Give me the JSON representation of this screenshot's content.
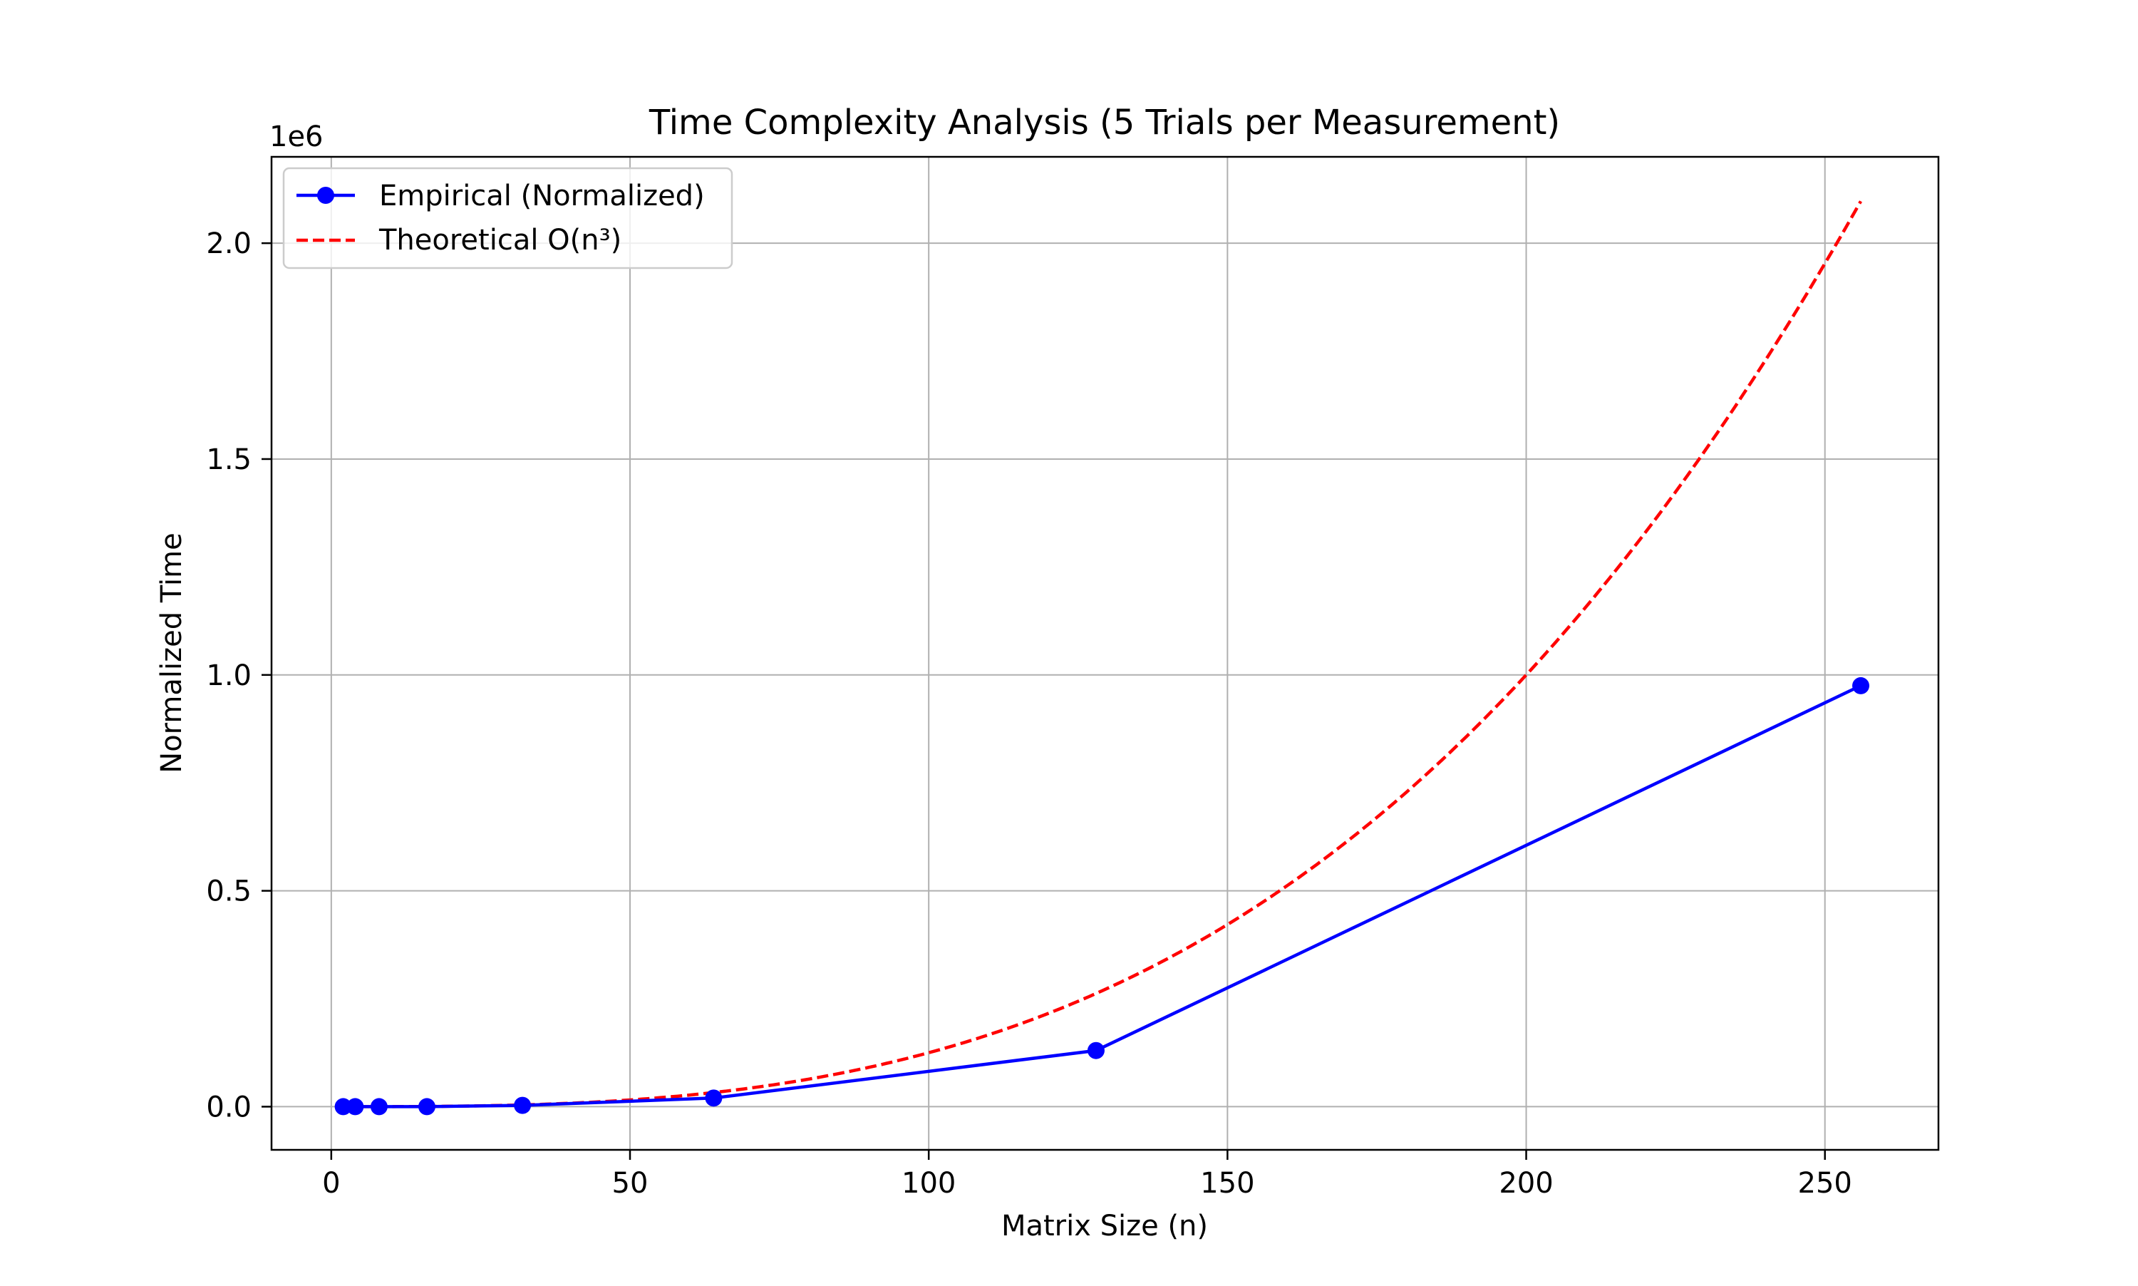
{
  "chart_data": {
    "type": "line",
    "title": "Time Complexity Analysis (5 Trials per Measurement)",
    "xlabel": "Matrix Size (n)",
    "ylabel": "Normalized Time",
    "y_offset_label": "1e6",
    "xlim": [
      -10,
      269
    ],
    "ylim": [
      -0.1,
      2.2
    ],
    "x_ticks": [
      0,
      50,
      100,
      150,
      200,
      250
    ],
    "x_tick_labels": [
      "0",
      "50",
      "100",
      "150",
      "200",
      "250"
    ],
    "y_ticks": [
      0.0,
      0.5,
      1.0,
      1.5,
      2.0
    ],
    "y_tick_labels": [
      "0.0",
      "0.5",
      "1.0",
      "1.5",
      "2.0"
    ],
    "grid": true,
    "legend_position": "top-left",
    "series": [
      {
        "name": "Empirical (Normalized)",
        "style": "solid-marker",
        "color": "#0000ff",
        "x": [
          2,
          4,
          8,
          16,
          32,
          64,
          128,
          256
        ],
        "y": [
          0.0,
          0.0,
          0.0,
          0.0,
          0.003,
          0.02,
          0.13,
          0.975
        ]
      },
      {
        "name": "Theoretical O(n³)",
        "style": "dashed",
        "color": "#ff0000",
        "formula": "n^3 / 8",
        "x_range": [
          2,
          256
        ]
      }
    ]
  }
}
